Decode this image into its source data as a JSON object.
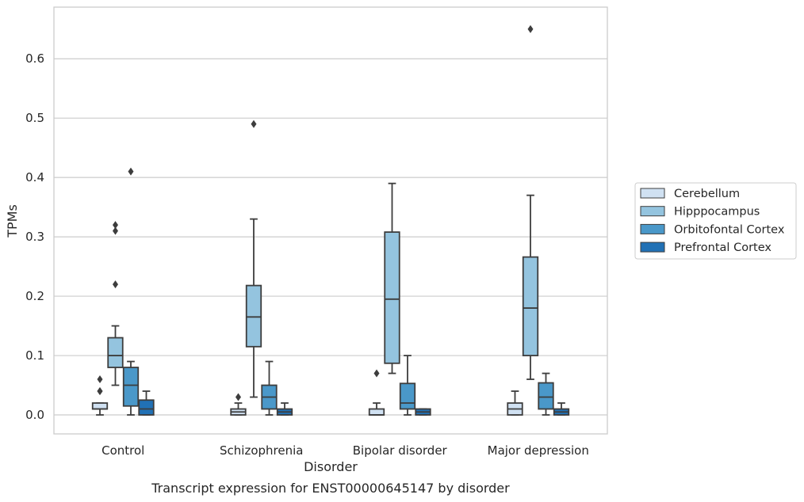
{
  "chart_data": {
    "type": "box",
    "caption": "Transcript expression for ENST00000645147 by disorder",
    "xlabel": "Disorder",
    "ylabel": "TPMs",
    "ylim": [
      -0.032,
      0.687
    ],
    "yticks": [
      0.0,
      0.1,
      0.2,
      0.3,
      0.4,
      0.5,
      0.6
    ],
    "ytick_labels": [
      "0.0",
      "0.1",
      "0.2",
      "0.3",
      "0.4",
      "0.5",
      "0.6"
    ],
    "grid": true,
    "legend_position": "right",
    "categories": [
      "Control",
      "Schizophrenia",
      "Bipolar disorder",
      "Major depression"
    ],
    "series": [
      {
        "name": "Cerebellum",
        "color": "#d0e1f2",
        "boxes": [
          {
            "whislo": 0.0,
            "q1": 0.01,
            "med": 0.01,
            "q3": 0.02,
            "whishi": 0.02,
            "fliers": [
              0.04,
              0.04,
              0.06
            ]
          },
          {
            "whislo": 0.0,
            "q1": 0.0,
            "med": 0.005,
            "q3": 0.01,
            "whishi": 0.02,
            "fliers": [
              0.03
            ]
          },
          {
            "whislo": 0.0,
            "q1": 0.0,
            "med": 0.0,
            "q3": 0.01,
            "whishi": 0.02,
            "fliers": [
              0.07
            ]
          },
          {
            "whislo": 0.0,
            "q1": 0.0,
            "med": 0.01,
            "q3": 0.02,
            "whishi": 0.04,
            "fliers": []
          }
        ]
      },
      {
        "name": "Hipppocampus",
        "color": "#94c4df",
        "boxes": [
          {
            "whislo": 0.05,
            "q1": 0.08,
            "med": 0.1,
            "q3": 0.13,
            "whishi": 0.15,
            "fliers": [
              0.22,
              0.31,
              0.32
            ]
          },
          {
            "whislo": 0.03,
            "q1": 0.115,
            "med": 0.165,
            "q3": 0.218,
            "whishi": 0.33,
            "fliers": [
              0.49
            ]
          },
          {
            "whislo": 0.07,
            "q1": 0.087,
            "med": 0.195,
            "q3": 0.308,
            "whishi": 0.39,
            "fliers": []
          },
          {
            "whislo": 0.06,
            "q1": 0.1,
            "med": 0.18,
            "q3": 0.266,
            "whishi": 0.37,
            "fliers": [
              0.65
            ]
          }
        ]
      },
      {
        "name": "Orbitofontal Cortex",
        "color": "#4a98c9",
        "boxes": [
          {
            "whislo": 0.0,
            "q1": 0.015,
            "med": 0.05,
            "q3": 0.08,
            "whishi": 0.09,
            "fliers": [
              0.41
            ]
          },
          {
            "whislo": 0.0,
            "q1": 0.01,
            "med": 0.03,
            "q3": 0.05,
            "whishi": 0.09,
            "fliers": []
          },
          {
            "whislo": 0.0,
            "q1": 0.01,
            "med": 0.02,
            "q3": 0.053,
            "whishi": 0.1,
            "fliers": []
          },
          {
            "whislo": 0.0,
            "q1": 0.01,
            "med": 0.03,
            "q3": 0.054,
            "whishi": 0.07,
            "fliers": []
          }
        ]
      },
      {
        "name": "Prefrontal Cortex",
        "color": "#2171b5",
        "boxes": [
          {
            "whislo": 0.0,
            "q1": 0.0,
            "med": 0.01,
            "q3": 0.025,
            "whishi": 0.04,
            "fliers": []
          },
          {
            "whislo": 0.0,
            "q1": 0.0,
            "med": 0.005,
            "q3": 0.01,
            "whishi": 0.02,
            "fliers": []
          },
          {
            "whislo": 0.0,
            "q1": 0.0,
            "med": 0.005,
            "q3": 0.01,
            "whishi": 0.01,
            "fliers": []
          },
          {
            "whislo": 0.0,
            "q1": 0.0,
            "med": 0.005,
            "q3": 0.01,
            "whishi": 0.02,
            "fliers": []
          }
        ]
      }
    ]
  }
}
